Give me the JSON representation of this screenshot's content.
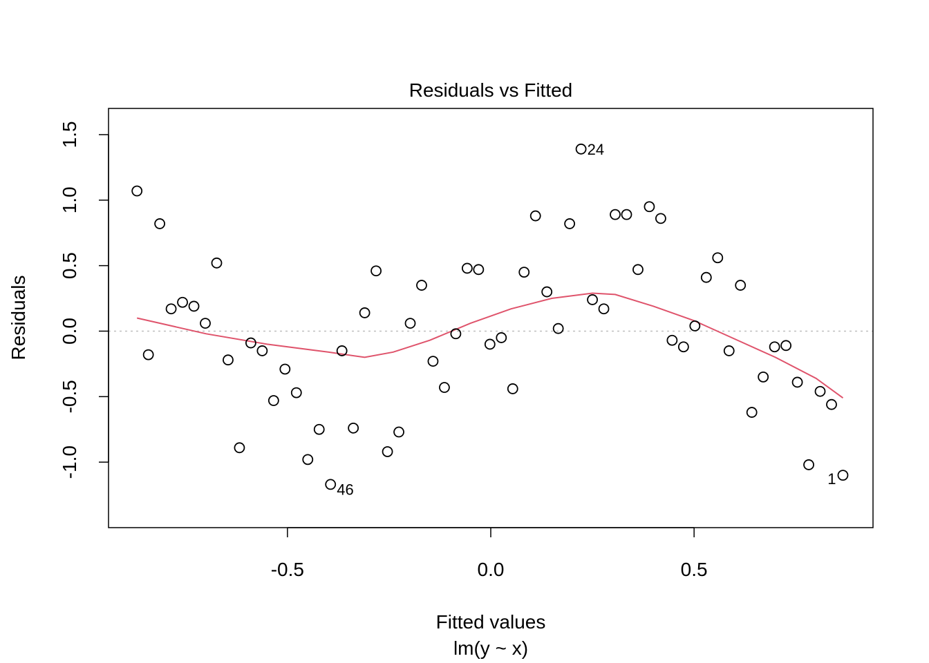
{
  "chart_data": {
    "type": "scatter",
    "title": "Residuals vs Fitted",
    "xlabel": "Fitted values",
    "sublabel": "lm(y ~ x)",
    "ylabel": "Residuals",
    "xlim": [
      -0.94,
      0.94
    ],
    "ylim": [
      -1.5,
      1.7
    ],
    "xticks": [
      -0.5,
      0.0,
      0.5
    ],
    "xtick_labels": [
      "-0.5",
      "0.0",
      "0.5"
    ],
    "yticks": [
      -1.0,
      -0.5,
      0.0,
      0.5,
      1.0,
      1.5
    ],
    "ytick_labels": [
      "-1.0",
      "-0.5",
      "0.0",
      "0.5",
      "1.0",
      "1.5"
    ],
    "reference_line": {
      "y": 0,
      "style": "dotted",
      "color": "#BEBEBE"
    },
    "point_color": "#000000",
    "smooth_color": "#DF536B",
    "points": [
      {
        "x": -0.87,
        "y": 1.07
      },
      {
        "x": -0.842,
        "y": -0.18
      },
      {
        "x": -0.814,
        "y": 0.82
      },
      {
        "x": -0.786,
        "y": 0.17
      },
      {
        "x": -0.758,
        "y": 0.22
      },
      {
        "x": -0.73,
        "y": 0.19
      },
      {
        "x": -0.702,
        "y": 0.06
      },
      {
        "x": -0.674,
        "y": 0.52
      },
      {
        "x": -0.646,
        "y": -0.22
      },
      {
        "x": -0.618,
        "y": -0.89
      },
      {
        "x": -0.59,
        "y": -0.09
      },
      {
        "x": -0.562,
        "y": -0.15
      },
      {
        "x": -0.534,
        "y": -0.53
      },
      {
        "x": -0.506,
        "y": -0.29
      },
      {
        "x": -0.478,
        "y": -0.47
      },
      {
        "x": -0.45,
        "y": -0.98
      },
      {
        "x": -0.422,
        "y": -0.75
      },
      {
        "x": -0.394,
        "y": -1.17,
        "label": "46",
        "label_side": "right-below"
      },
      {
        "x": -0.366,
        "y": -0.15
      },
      {
        "x": -0.338,
        "y": -0.74
      },
      {
        "x": -0.31,
        "y": 0.14
      },
      {
        "x": -0.282,
        "y": 0.46
      },
      {
        "x": -0.254,
        "y": -0.92
      },
      {
        "x": -0.226,
        "y": -0.77
      },
      {
        "x": -0.198,
        "y": 0.06
      },
      {
        "x": -0.17,
        "y": 0.35
      },
      {
        "x": -0.142,
        "y": -0.23
      },
      {
        "x": -0.114,
        "y": -0.43
      },
      {
        "x": -0.086,
        "y": -0.02
      },
      {
        "x": -0.058,
        "y": 0.48
      },
      {
        "x": -0.03,
        "y": 0.47
      },
      {
        "x": -0.002,
        "y": -0.1
      },
      {
        "x": 0.026,
        "y": -0.05
      },
      {
        "x": 0.054,
        "y": -0.44
      },
      {
        "x": 0.082,
        "y": 0.45
      },
      {
        "x": 0.11,
        "y": 0.88
      },
      {
        "x": 0.138,
        "y": 0.3
      },
      {
        "x": 0.166,
        "y": 0.02
      },
      {
        "x": 0.194,
        "y": 0.82
      },
      {
        "x": 0.222,
        "y": 1.39,
        "label": "24",
        "label_side": "right"
      },
      {
        "x": 0.25,
        "y": 0.24
      },
      {
        "x": 0.278,
        "y": 0.17
      },
      {
        "x": 0.306,
        "y": 0.89
      },
      {
        "x": 0.334,
        "y": 0.89
      },
      {
        "x": 0.362,
        "y": 0.47
      },
      {
        "x": 0.39,
        "y": 0.95
      },
      {
        "x": 0.418,
        "y": 0.86
      },
      {
        "x": 0.446,
        "y": -0.07
      },
      {
        "x": 0.474,
        "y": -0.12
      },
      {
        "x": 0.502,
        "y": 0.04
      },
      {
        "x": 0.53,
        "y": 0.41
      },
      {
        "x": 0.558,
        "y": 0.56
      },
      {
        "x": 0.586,
        "y": -0.15
      },
      {
        "x": 0.614,
        "y": 0.35
      },
      {
        "x": 0.642,
        "y": -0.62
      },
      {
        "x": 0.67,
        "y": -0.35
      },
      {
        "x": 0.698,
        "y": -0.12
      },
      {
        "x": 0.726,
        "y": -0.11
      },
      {
        "x": 0.754,
        "y": -0.39
      },
      {
        "x": 0.782,
        "y": -1.02
      },
      {
        "x": 0.81,
        "y": -0.46
      },
      {
        "x": 0.838,
        "y": -0.56
      },
      {
        "x": 0.866,
        "y": -1.1,
        "label": "1",
        "label_side": "left"
      }
    ],
    "smooth_line": [
      {
        "x": -0.87,
        "y": 0.1
      },
      {
        "x": -0.7,
        "y": -0.02
      },
      {
        "x": -0.55,
        "y": -0.1
      },
      {
        "x": -0.4,
        "y": -0.16
      },
      {
        "x": -0.31,
        "y": -0.2
      },
      {
        "x": -0.24,
        "y": -0.16
      },
      {
        "x": -0.15,
        "y": -0.07
      },
      {
        "x": -0.05,
        "y": 0.06
      },
      {
        "x": 0.05,
        "y": 0.17
      },
      {
        "x": 0.15,
        "y": 0.25
      },
      {
        "x": 0.25,
        "y": 0.29
      },
      {
        "x": 0.306,
        "y": 0.28
      },
      {
        "x": 0.4,
        "y": 0.19
      },
      {
        "x": 0.5,
        "y": 0.08
      },
      {
        "x": 0.6,
        "y": -0.06
      },
      {
        "x": 0.7,
        "y": -0.2
      },
      {
        "x": 0.8,
        "y": -0.36
      },
      {
        "x": 0.866,
        "y": -0.51
      }
    ]
  }
}
